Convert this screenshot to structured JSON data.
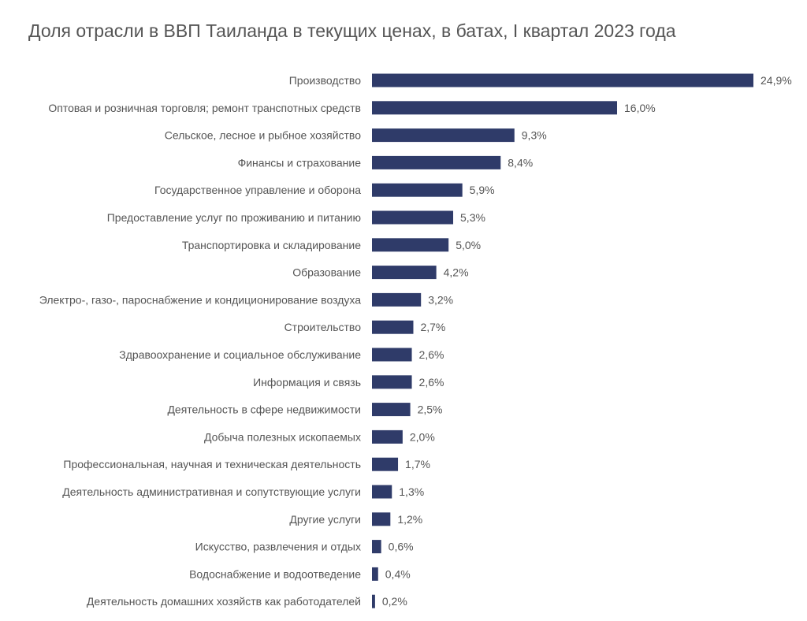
{
  "chart_data": {
    "type": "bar",
    "orientation": "horizontal",
    "title": "Доля отрасли в ВВП Таиланда в текущих ценах, в батах, I квартал 2023 года",
    "bar_color": "#2f3b69",
    "categories": [
      "Производство",
      "Оптовая и розничная торговля; ремонт транспотных средств",
      "Сельское, лесное и рыбное хозяйство",
      "Финансы и страхование",
      "Государственное управление и оборона",
      "Предоставление услуг по проживанию и питанию",
      "Транспортировка и складирование",
      "Образование",
      "Электро-, газо-, пароснабжение и кондиционирование воздуха",
      "Строительство",
      "Здравоохранение и социальное обслуживание",
      "Информация и связь",
      "Деятельность в сфере недвижимости",
      "Добыча полезных ископаемых",
      "Профессиональная, научная и техническая деятельность",
      "Деятельность административная и сопутствующие услуги",
      "Другие услуги",
      "Искусство, развлечения и отдых",
      "Водоснабжение и водоотведение",
      "Деятельность домашних хозяйств как работодателей"
    ],
    "values": [
      24.9,
      16.0,
      9.3,
      8.4,
      5.9,
      5.3,
      5.0,
      4.2,
      3.2,
      2.7,
      2.6,
      2.6,
      2.5,
      2.0,
      1.7,
      1.3,
      1.2,
      0.6,
      0.4,
      0.2
    ],
    "value_labels": [
      "24,9%",
      "16,0%",
      "9,3%",
      "8,4%",
      "5,9%",
      "5,3%",
      "5,0%",
      "4,2%",
      "3,2%",
      "2,7%",
      "2,6%",
      "2,6%",
      "2,5%",
      "2,0%",
      "1,7%",
      "1,3%",
      "1,2%",
      "0,6%",
      "0,4%",
      "0,2%"
    ],
    "xlim": [
      0,
      24.9
    ],
    "grid": false,
    "legend": "none"
  }
}
